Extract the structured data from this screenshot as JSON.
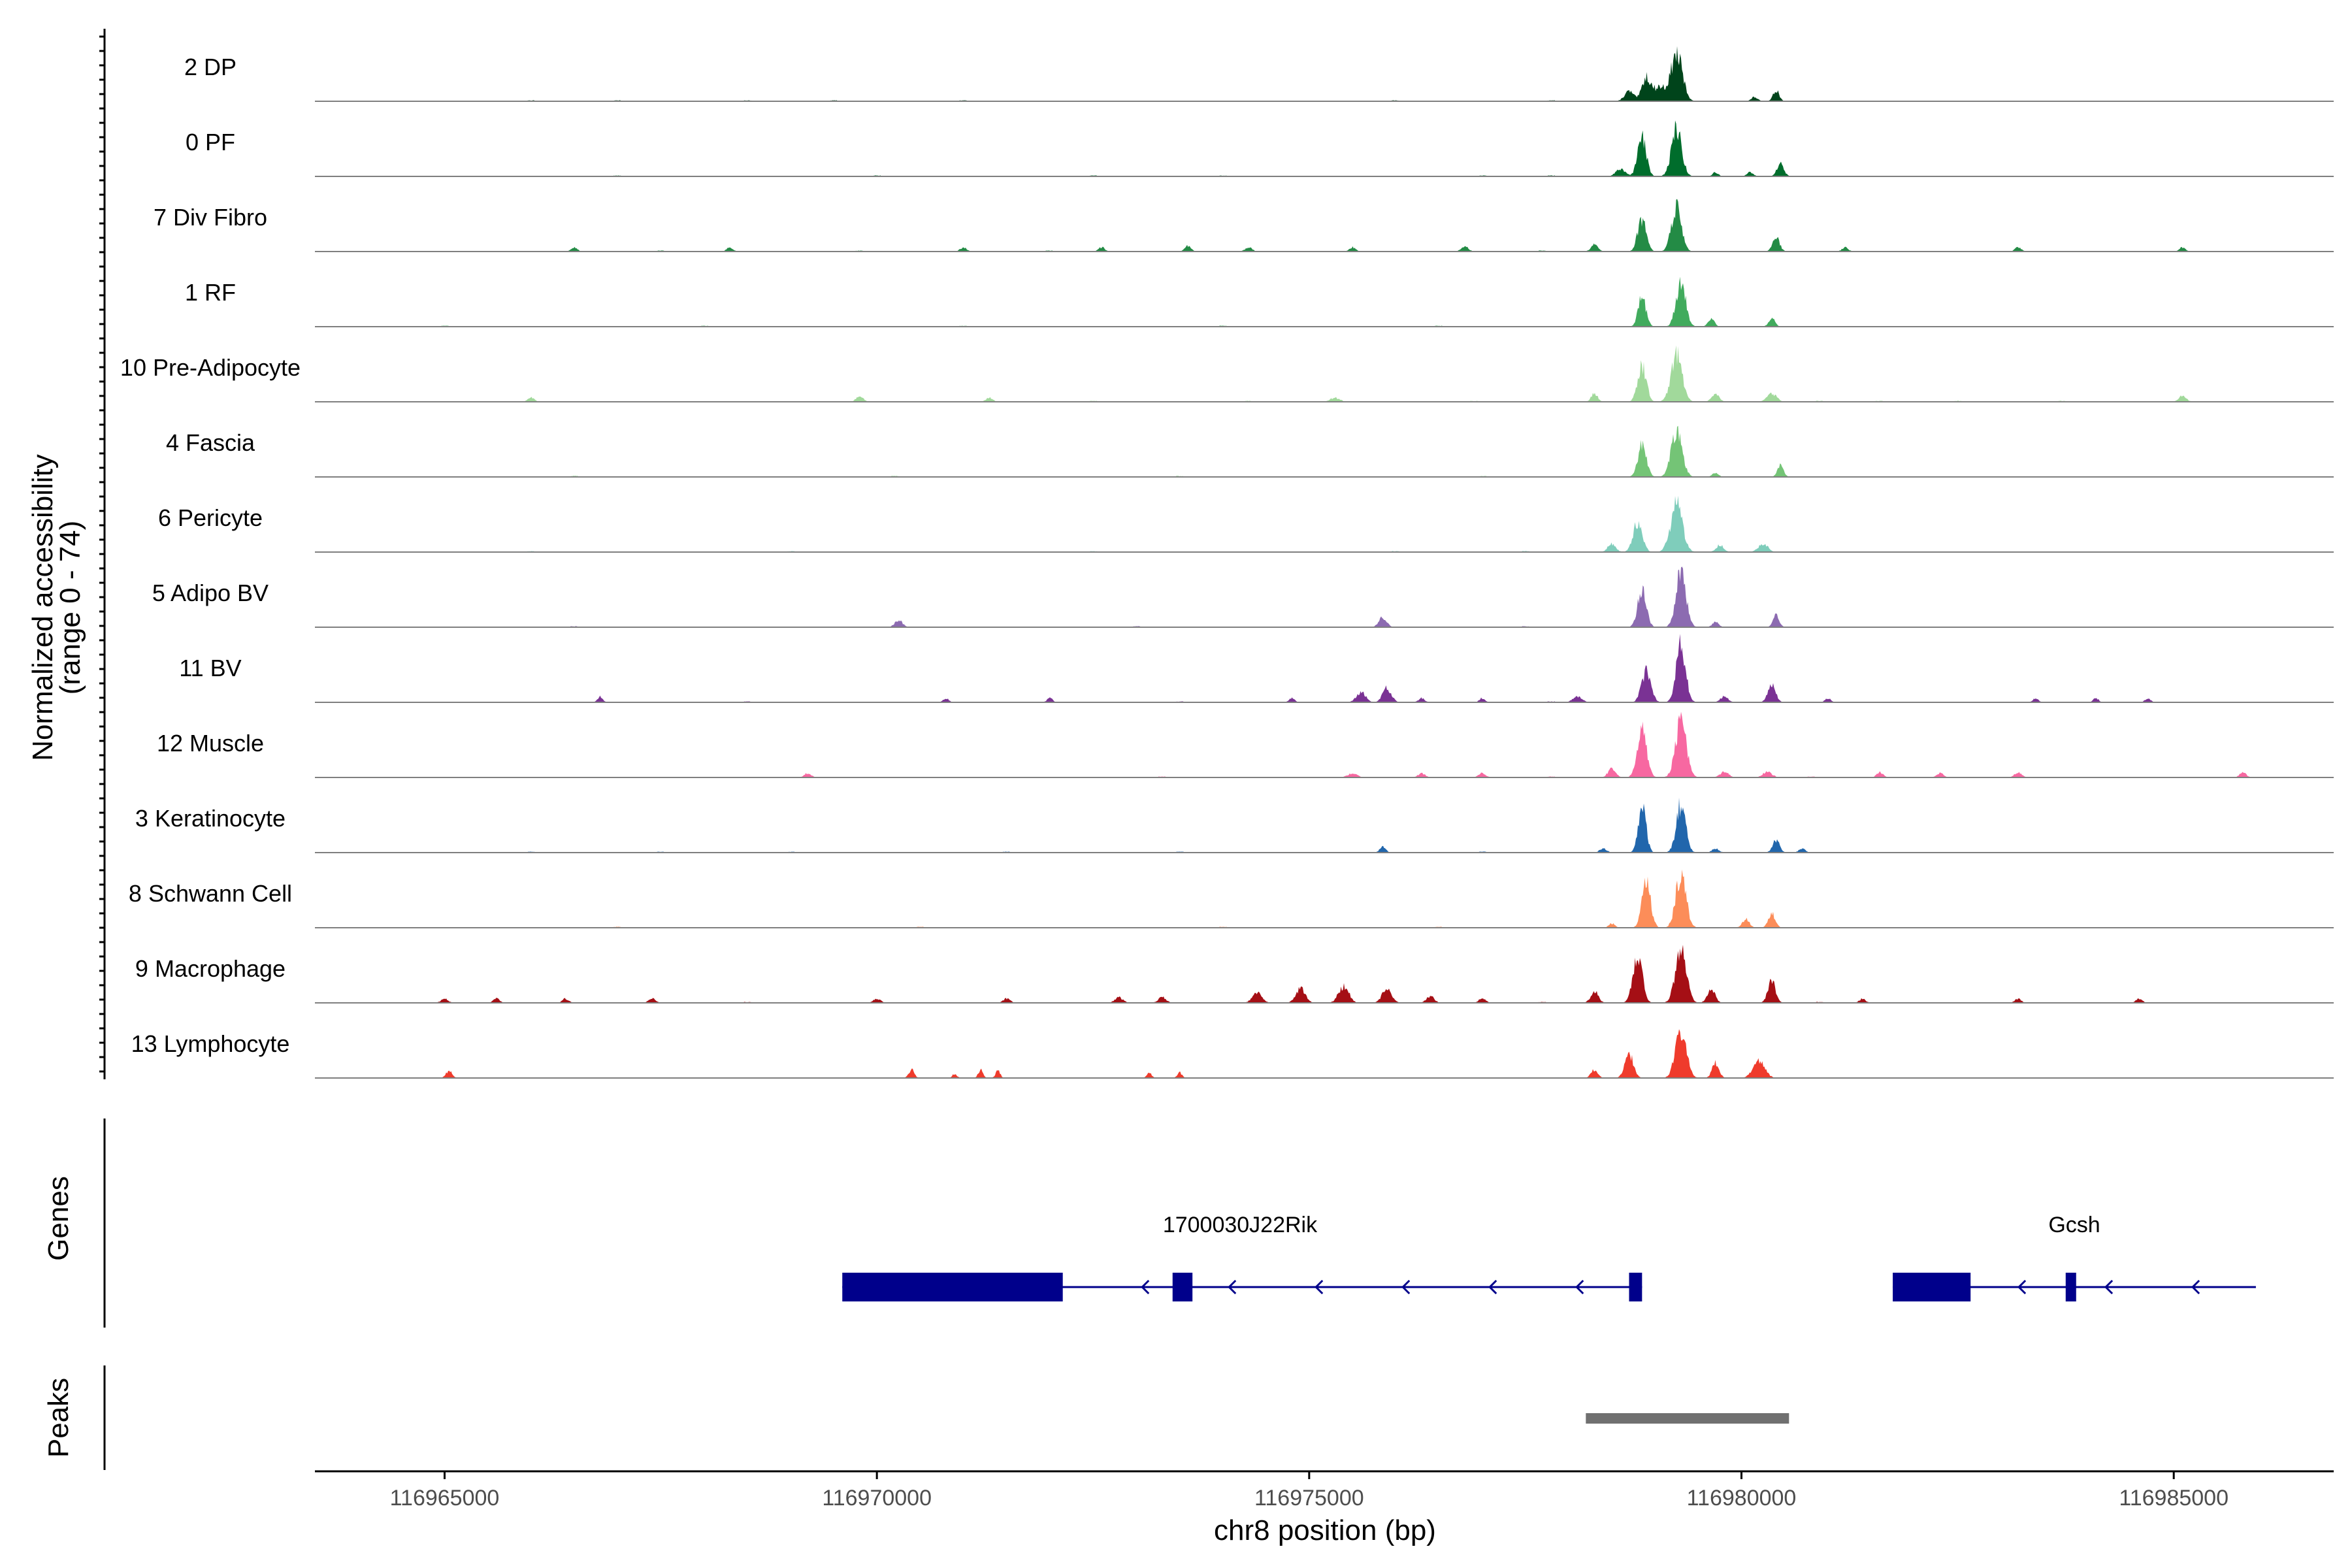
{
  "chart_data": {
    "type": "area",
    "title": "",
    "ylabel": "Normalized accessibility",
    "ylabel_range": "(range 0 - 74)",
    "ylim": [
      0,
      74
    ],
    "xlabel": "chr8 position (bp)",
    "xlim": [
      116963500,
      116986850
    ],
    "x_ticks": [
      116965000,
      116970000,
      116975000,
      116980000,
      116985000
    ],
    "x_tick_labels": [
      "116965000",
      "116970000",
      "116975000",
      "116980000",
      "116985000"
    ],
    "grid": false,
    "tracks": [
      {
        "name": "2 DP",
        "color": "#00441b",
        "peaks": [
          [
            116978700,
            7,
            120
          ],
          [
            116978900,
            17,
            110
          ],
          [
            116979250,
            33,
            150
          ],
          [
            116979050,
            10,
            140
          ],
          [
            116980400,
            8,
            80
          ],
          [
            116980150,
            3,
            80
          ]
        ],
        "noise": [
          116966000,
          116967000,
          116968500,
          116969500,
          116971000,
          116976000,
          116977800
        ]
      },
      {
        "name": "0 PF",
        "color": "#006d2c",
        "peaks": [
          [
            116978850,
            27,
            110
          ],
          [
            116979250,
            34,
            130
          ],
          [
            116978600,
            5,
            120
          ],
          [
            116980450,
            9,
            90
          ],
          [
            116980100,
            3,
            80
          ],
          [
            116979700,
            3,
            70
          ]
        ],
        "noise": [
          116967000,
          116970000,
          116972500,
          116974000,
          116977000,
          116977800
        ]
      },
      {
        "name": "7 Div Fibro",
        "color": "#238b45",
        "peaks": [
          [
            116978850,
            23,
            110
          ],
          [
            116979250,
            31,
            130
          ],
          [
            116978300,
            5,
            90
          ],
          [
            116980400,
            10,
            90
          ],
          [
            116976800,
            4,
            90
          ],
          [
            116966500,
            3,
            80
          ],
          [
            116968300,
            3,
            80
          ],
          [
            116971000,
            3,
            80
          ],
          [
            116972600,
            3,
            80
          ],
          [
            116973600,
            4,
            80
          ],
          [
            116974300,
            3,
            90
          ],
          [
            116975500,
            3,
            80
          ],
          [
            116981200,
            3,
            80
          ],
          [
            116983200,
            3,
            80
          ],
          [
            116985100,
            3,
            80
          ]
        ],
        "noise": [
          116967500,
          116969800,
          116972000,
          116977700
        ]
      },
      {
        "name": "1 RF",
        "color": "#41ab5d",
        "peaks": [
          [
            116978850,
            21,
            100
          ],
          [
            116979300,
            34,
            120
          ],
          [
            116979650,
            6,
            80
          ],
          [
            116980350,
            6,
            80
          ]
        ],
        "noise": [
          116965000,
          116968000,
          116971000,
          116974000,
          116976500
        ]
      },
      {
        "name": "10 Pre-Adipocyte",
        "color": "#a1d99b",
        "peaks": [
          [
            116978850,
            26,
            110
          ],
          [
            116979250,
            33,
            140
          ],
          [
            116978300,
            6,
            80
          ],
          [
            116979700,
            5,
            100
          ],
          [
            116980350,
            6,
            120
          ],
          [
            116966000,
            3,
            80
          ],
          [
            116969800,
            4,
            90
          ],
          [
            116971300,
            3,
            90
          ],
          [
            116975300,
            3,
            120
          ],
          [
            116985100,
            4,
            100
          ]
        ],
        "noise": [
          116972500,
          116974300,
          116976900,
          116980900,
          116981600,
          116982500,
          116983700
        ]
      },
      {
        "name": "4 Fascia",
        "color": "#74c476",
        "peaks": [
          [
            116978850,
            23,
            110
          ],
          [
            116979250,
            34,
            140
          ],
          [
            116979700,
            3,
            80
          ],
          [
            116980450,
            8,
            80
          ]
        ],
        "noise": [
          116966500,
          116970200,
          116973500,
          116977000
        ]
      },
      {
        "name": "6 Pericyte",
        "color": "#7fcdbb",
        "peaks": [
          [
            116978800,
            21,
            120
          ],
          [
            116979250,
            34,
            150
          ],
          [
            116978500,
            6,
            100
          ],
          [
            116979750,
            5,
            100
          ],
          [
            116980250,
            6,
            120
          ]
        ],
        "noise": [
          116966000,
          116969000,
          116972500,
          116976000,
          116977500
        ]
      },
      {
        "name": "5 Adipo BV",
        "color": "#8c6bb1",
        "peaks": [
          [
            116978850,
            27,
            110
          ],
          [
            116979300,
            38,
            130
          ],
          [
            116979700,
            4,
            80
          ],
          [
            116980400,
            8,
            80
          ],
          [
            116970250,
            5,
            100
          ],
          [
            116975850,
            7,
            100
          ]
        ],
        "noise": [
          116966500,
          116973000,
          116977500
        ]
      },
      {
        "name": "11 BV",
        "color": "#7a3294",
        "peaks": [
          [
            116978900,
            22,
            120
          ],
          [
            116979300,
            40,
            120
          ],
          [
            116978100,
            4,
            120
          ],
          [
            116979800,
            4,
            100
          ],
          [
            116980350,
            12,
            100
          ],
          [
            116966800,
            4,
            70
          ],
          [
            116970800,
            3,
            70
          ],
          [
            116972000,
            3,
            70
          ],
          [
            116974800,
            3,
            70
          ],
          [
            116975600,
            7,
            120
          ],
          [
            116975900,
            10,
            110
          ],
          [
            116976300,
            3,
            80
          ],
          [
            116977000,
            3,
            70
          ],
          [
            116981000,
            3,
            70
          ],
          [
            116983400,
            3,
            70
          ],
          [
            116984100,
            3,
            70
          ],
          [
            116984700,
            3,
            70
          ]
        ],
        "noise": [
          116968500,
          116973500,
          116977800
        ]
      },
      {
        "name": "12 Muscle",
        "color": "#f768a1",
        "peaks": [
          [
            116978850,
            34,
            120
          ],
          [
            116979300,
            38,
            140
          ],
          [
            116978500,
            6,
            100
          ],
          [
            116979800,
            4,
            110
          ],
          [
            116980300,
            4,
            120
          ],
          [
            116969200,
            3,
            90
          ],
          [
            116975500,
            3,
            120
          ],
          [
            116976300,
            3,
            90
          ],
          [
            116977000,
            3,
            90
          ],
          [
            116981600,
            4,
            80
          ],
          [
            116982300,
            3,
            90
          ],
          [
            116983200,
            4,
            90
          ],
          [
            116985800,
            4,
            80
          ]
        ],
        "noise": [
          116973300,
          116977800,
          116980800
        ]
      },
      {
        "name": "3 Keratinocyte",
        "color": "#2166ac",
        "peaks": [
          [
            116978850,
            34,
            100
          ],
          [
            116979300,
            34,
            120
          ],
          [
            116978400,
            3,
            90
          ],
          [
            116979700,
            3,
            90
          ],
          [
            116980400,
            9,
            90
          ],
          [
            116975850,
            4,
            80
          ],
          [
            116980700,
            3,
            80
          ]
        ],
        "noise": [
          116966000,
          116967500,
          116969000,
          116971500,
          116973500,
          116977000
        ]
      },
      {
        "name": "8 Schwann Cell",
        "color": "#fc8d59",
        "peaks": [
          [
            116978900,
            32,
            110
          ],
          [
            116979300,
            38,
            130
          ],
          [
            116980350,
            10,
            90
          ],
          [
            116980050,
            6,
            90
          ],
          [
            116978500,
            3,
            80
          ]
        ],
        "noise": [
          116967000,
          116970500,
          116974000,
          116976500
        ]
      },
      {
        "name": "9 Macrophage",
        "color": "#a50f15",
        "peaks": [
          [
            116978800,
            32,
            120
          ],
          [
            116979300,
            38,
            140
          ],
          [
            116978300,
            8,
            100
          ],
          [
            116979650,
            10,
            100
          ],
          [
            116980350,
            15,
            100
          ],
          [
            116965000,
            3,
            90
          ],
          [
            116965600,
            3,
            80
          ],
          [
            116966400,
            3,
            80
          ],
          [
            116967400,
            3,
            90
          ],
          [
            116970000,
            3,
            90
          ],
          [
            116971500,
            3,
            90
          ],
          [
            116972800,
            4,
            100
          ],
          [
            116973300,
            4,
            100
          ],
          [
            116974400,
            8,
            120
          ],
          [
            116974900,
            10,
            120
          ],
          [
            116975400,
            12,
            130
          ],
          [
            116975900,
            10,
            120
          ],
          [
            116976400,
            5,
            100
          ],
          [
            116977000,
            3,
            90
          ],
          [
            116981400,
            3,
            80
          ],
          [
            116983200,
            3,
            80
          ],
          [
            116984600,
            3,
            80
          ]
        ],
        "noise": [
          116968500,
          116977700,
          116980900
        ]
      },
      {
        "name": "13 Lymphocyte",
        "color": "#ef3b2c",
        "peaks": [
          [
            116978700,
            17,
            110
          ],
          [
            116979300,
            34,
            140
          ],
          [
            116978300,
            6,
            90
          ],
          [
            116979700,
            11,
            90
          ],
          [
            116980200,
            12,
            150
          ],
          [
            116965050,
            5,
            80
          ],
          [
            116970400,
            6,
            70
          ],
          [
            116970900,
            3,
            60
          ],
          [
            116971200,
            6,
            60
          ],
          [
            116971400,
            5,
            60
          ],
          [
            116973150,
            4,
            60
          ],
          [
            116973500,
            4,
            60
          ]
        ],
        "noise": []
      }
    ],
    "genes_label": "Genes",
    "genes": [
      {
        "name": "1700030J22Rik",
        "strand": "-",
        "start": 116969600,
        "end": 116978850,
        "exons": [
          [
            116969600,
            116972150
          ],
          [
            116973420,
            116973650
          ],
          [
            116978700,
            116978850
          ]
        ],
        "label_pos": 116974200
      },
      {
        "name": "Gcsh",
        "strand": "-",
        "start": 116981750,
        "end": 116985950,
        "exons": [
          [
            116981750,
            116982650
          ],
          [
            116983750,
            116983850
          ]
        ],
        "label_pos": 116983850
      }
    ],
    "peaks_label": "Peaks",
    "peak_regions": [
      [
        116978200,
        116980550
      ]
    ],
    "colors": {
      "gene": "#00008b",
      "peak_region": "#707070",
      "baseline": "#7f7f7f"
    }
  }
}
